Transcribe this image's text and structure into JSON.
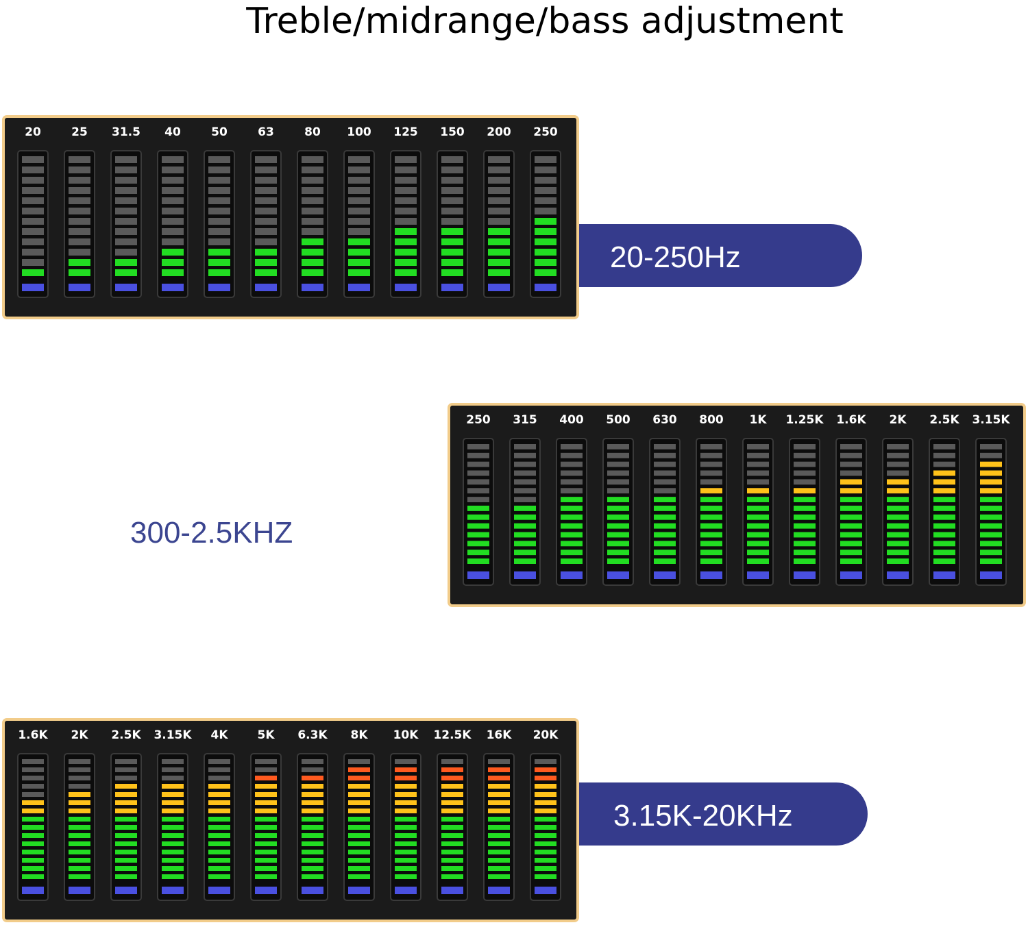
{
  "title": "Treble/midrange/bass adjustment",
  "panels": [
    {
      "range_label": "20-250Hz",
      "bands": [
        "20",
        "25",
        "31.5",
        "40",
        "50",
        "63",
        "80",
        "100",
        "125",
        "150",
        "200",
        "250"
      ],
      "levels": [
        1,
        2,
        2,
        3,
        3,
        3,
        4,
        4,
        5,
        5,
        5,
        6
      ]
    },
    {
      "range_label": "300-2.5KHZ",
      "bands": [
        "250",
        "315",
        "400",
        "500",
        "630",
        "800",
        "1K",
        "1.25K",
        "1.6K",
        "2K",
        "2.5K",
        "3.15K"
      ],
      "levels": [
        7,
        7,
        8,
        8,
        8,
        9,
        9,
        9,
        10,
        10,
        11,
        12
      ]
    },
    {
      "range_label": "3.15K-20KHz",
      "bands": [
        "1.6K",
        "2K",
        "2.5K",
        "3.15K",
        "4K",
        "5K",
        "6.3K",
        "8K",
        "10K",
        "12.5K",
        "16K",
        "20K"
      ],
      "levels": [
        10,
        11,
        12,
        12,
        12,
        13,
        13,
        14,
        14,
        14,
        14,
        14
      ]
    }
  ]
}
